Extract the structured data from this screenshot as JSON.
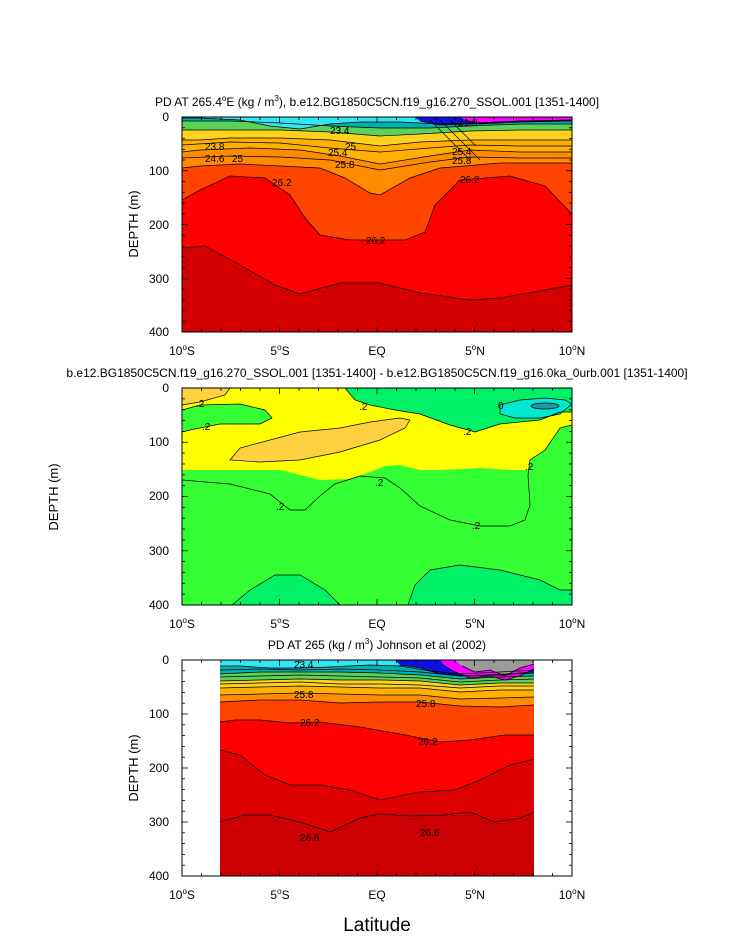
{
  "figure": {
    "xlabel": "Latitude",
    "shared_ylabel": "DEPTH (m)"
  },
  "chart_data": [
    {
      "type": "contour",
      "title_prefix": "PD AT 265.4",
      "title_sup1": "o",
      "title_mid": "E (kg / m",
      "title_sup2": "3",
      "title_suffix": "), b.e12.BG1850C5CN.f19_g16.270_SSOL.001 [1351-1400]",
      "ylabel": "DEPTH (m)",
      "xlim": [
        -10,
        10
      ],
      "ylim": [
        400,
        0
      ],
      "x_ticks": [
        {
          "deg": "10",
          "sup": "o",
          "hemi": "S"
        },
        {
          "deg": "5",
          "sup": "o",
          "hemi": "S"
        },
        {
          "deg": "EQ",
          "sup": "",
          "hemi": ""
        },
        {
          "deg": "5",
          "sup": "o",
          "hemi": "N"
        },
        {
          "deg": "10",
          "sup": "o",
          "hemi": "N"
        }
      ],
      "y_ticks": [
        "0",
        "100",
        "200",
        "300",
        "400"
      ],
      "contour_labels": [
        "21.8",
        "23.4",
        "23.8",
        "24.6",
        "25",
        "25.4",
        "25.8",
        "26.2",
        "26.2",
        "26.2",
        "25",
        "25.4",
        "25.8"
      ],
      "colors": {
        "deep": "#d40000",
        "red": "#ff0000",
        "orange_red": "#ff4400",
        "orange": "#ff8c00",
        "light_orange": "#ffb000",
        "yellow": "#ffd21e",
        "green": "#5ad25a",
        "teal": "#00b0b0",
        "cyan": "#34e6f0",
        "blue": "#1010e0",
        "magenta": "#ff00ff"
      }
    },
    {
      "type": "contour",
      "title": "b.e12.BG1850C5CN.f19_g16.270_SSOL.001 [1351-1400] - b.e12.BG1850C5CN.f19_g16.0ka_0urb.001 [1351-1400]",
      "ylabel": "DEPTH (m)",
      "xlim": [
        -10,
        10
      ],
      "ylim": [
        400,
        0
      ],
      "x_ticks": [
        {
          "deg": "10",
          "sup": "o",
          "hemi": "S"
        },
        {
          "deg": "5",
          "sup": "o",
          "hemi": "S"
        },
        {
          "deg": "EQ",
          "sup": "",
          "hemi": ""
        },
        {
          "deg": "5",
          "sup": "o",
          "hemi": "N"
        },
        {
          "deg": "10",
          "sup": "o",
          "hemi": "N"
        }
      ],
      "y_ticks": [
        "0",
        "100",
        "200",
        "300",
        "400"
      ],
      "contour_labels": [
        ".2",
        ".2",
        ".2",
        "0",
        ".2",
        ".2",
        ".2",
        ".2",
        ".2"
      ],
      "colors": {
        "yellow": "#ffff00",
        "gold": "#ffd040",
        "green": "#33ff33",
        "bright_green": "#00f066",
        "cyan": "#00e8d0"
      }
    },
    {
      "type": "contour",
      "title_prefix": "PD AT 265 (kg / m",
      "title_sup": "3",
      "title_suffix": ") Johnson et al (2002)",
      "ylabel": "DEPTH (m)",
      "xlim": [
        -10,
        10
      ],
      "ylim": [
        400,
        0
      ],
      "data_xlim": [
        -8,
        8
      ],
      "x_ticks": [
        {
          "deg": "10",
          "sup": "o",
          "hemi": "S"
        },
        {
          "deg": "5",
          "sup": "o",
          "hemi": "S"
        },
        {
          "deg": "EQ",
          "sup": "",
          "hemi": ""
        },
        {
          "deg": "5",
          "sup": "o",
          "hemi": "N"
        },
        {
          "deg": "10",
          "sup": "o",
          "hemi": "N"
        }
      ],
      "y_ticks": [
        "0",
        "100",
        "200",
        "300",
        "400"
      ],
      "contour_labels": [
        "23.4",
        "25.8",
        "25.8",
        "26.2",
        "26.2",
        "26.6",
        "26.6"
      ],
      "colors": {
        "deep": "#cc0000",
        "red": "#ff0000",
        "orange_red": "#ff4400",
        "orange": "#ff8c00",
        "cyan": "#34e6f0",
        "magenta": "#ff00ff",
        "gray": "#9a9a9a"
      }
    }
  ]
}
